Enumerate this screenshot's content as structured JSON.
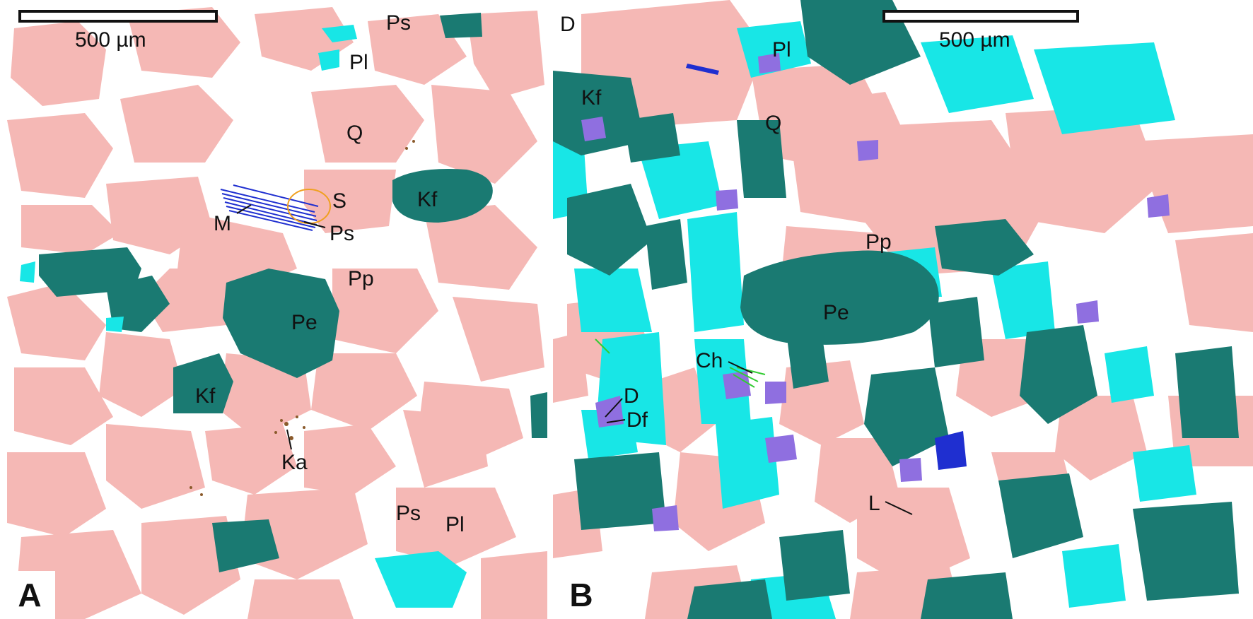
{
  "colors": {
    "quartz": "#f5b8b5",
    "k_feldspar": "#1a7a72",
    "plagioclase": "#18e6e6",
    "pore": "#ffffff",
    "dolomite": "#8f6fe0",
    "chlorite": "#33cc33",
    "kaolinite": "#8a5a2b",
    "mica": "#1f2fd0",
    "outline": "#111111"
  },
  "panel_a": {
    "letter": "A",
    "scale_label": "500 µm",
    "labels": {
      "ps_top": "Ps",
      "pl_top": "Pl",
      "q": "Q",
      "s": "S",
      "kf_right": "Kf",
      "m": "M",
      "ps_mid": "Ps",
      "pp": "Pp",
      "pe": "Pe",
      "kf_bottom": "Kf",
      "ka": "Ka",
      "ps_bottom": "Ps",
      "pl_bottom": "Pl"
    }
  },
  "panel_b": {
    "letter": "B",
    "scale_label": "500 µm",
    "labels": {
      "d_top": "D",
      "pl": "Pl",
      "kf": "Kf",
      "q": "Q",
      "pp": "Pp",
      "pe": "Pe",
      "ch": "Ch",
      "d": "D",
      "df": "Df",
      "l": "L"
    }
  }
}
